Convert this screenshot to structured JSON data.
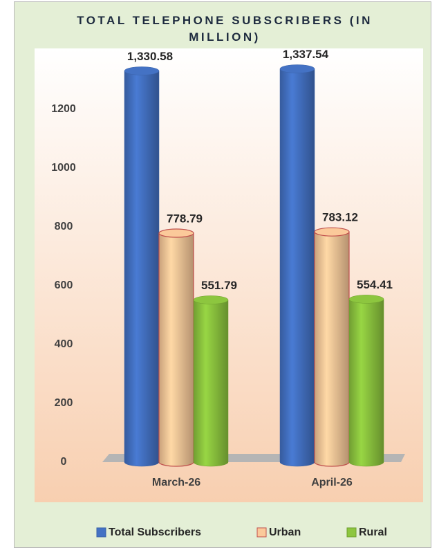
{
  "chart_data": {
    "type": "bar",
    "title": "TOTAL TELEPHONE SUBSCRIBERS (IN MILLION)",
    "categories": [
      "March-26",
      "April-26"
    ],
    "series": [
      {
        "name": "Total Subscribers",
        "color": "#4472c4",
        "values": [
          1330.58,
          1337.54
        ],
        "value_labels": [
          "1,330.58",
          "1,337.54"
        ]
      },
      {
        "name": "Urban",
        "color": "#fbc99a",
        "values": [
          778.79,
          783.12
        ]
      },
      {
        "name": "Rural",
        "color": "#8dc63f",
        "values": [
          551.79,
          554.41
        ]
      }
    ],
    "ylim": [
      0,
      1400
    ],
    "yticks": [
      0,
      200,
      400,
      600,
      800,
      1000,
      1200
    ],
    "grid": false,
    "legend": "bottom"
  }
}
